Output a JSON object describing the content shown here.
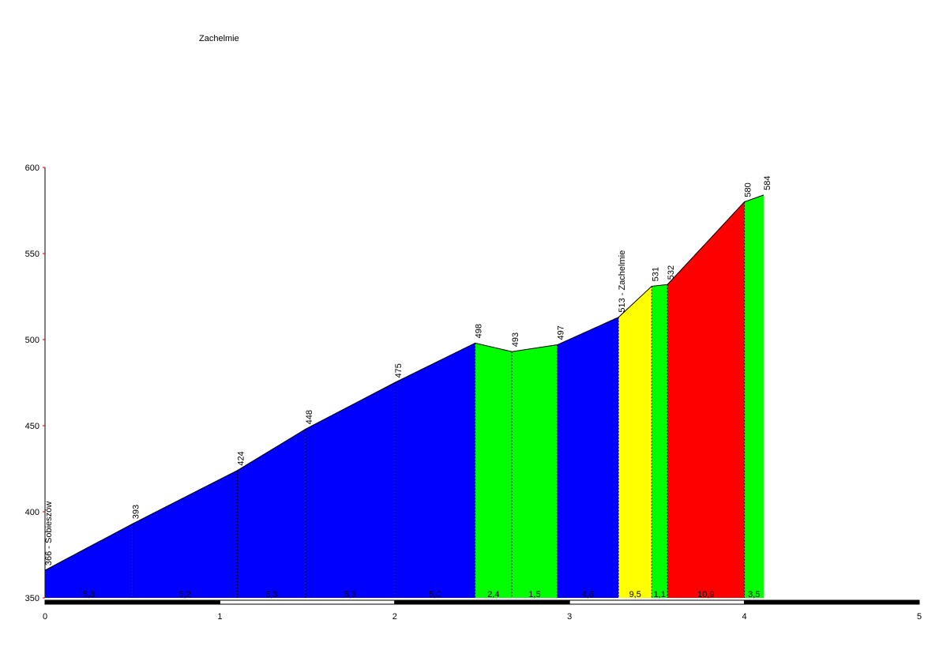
{
  "chart_data": {
    "type": "profile",
    "title": "Zachelmie",
    "x": [
      0,
      0.5,
      1.1,
      1.49,
      2.0,
      2.46,
      2.67,
      2.93,
      3.28,
      3.47,
      3.56,
      4.0,
      4.11
    ],
    "values": [
      366,
      393,
      424,
      448,
      475,
      498,
      493,
      497,
      513,
      531,
      532,
      580,
      584
    ],
    "value_labels": [
      "366 - Sobieszów",
      "393",
      "424",
      "448",
      "475",
      "498",
      "493",
      "497",
      "513 - Zachelmie",
      "531",
      "532",
      "580",
      "584"
    ],
    "gradients": [
      5.3,
      5.2,
      6.3,
      5.3,
      5.0,
      2.4,
      1.5,
      4.6,
      9.5,
      1.1,
      10.9,
      3.5
    ],
    "gradient_labels": [
      "5,3",
      "5,2",
      "6,3",
      "5,3",
      "5,0",
      "2,4",
      "1,5",
      "4,6",
      "9,5",
      "1,1",
      "10,9",
      "3,5"
    ],
    "segment_colors": [
      "#0000ff",
      "#0000ff",
      "#0000ff",
      "#0000ff",
      "#0000ff",
      "#00ff00",
      "#00ff00",
      "#0000ff",
      "#ffff00",
      "#00ff00",
      "#ff0000",
      "#00ff00"
    ],
    "xlim": [
      0,
      5
    ],
    "xticks": [
      0,
      1,
      2,
      3,
      4,
      5
    ],
    "ylim": [
      350,
      600
    ],
    "yticks": [
      350,
      400,
      450,
      500,
      550,
      600
    ]
  }
}
